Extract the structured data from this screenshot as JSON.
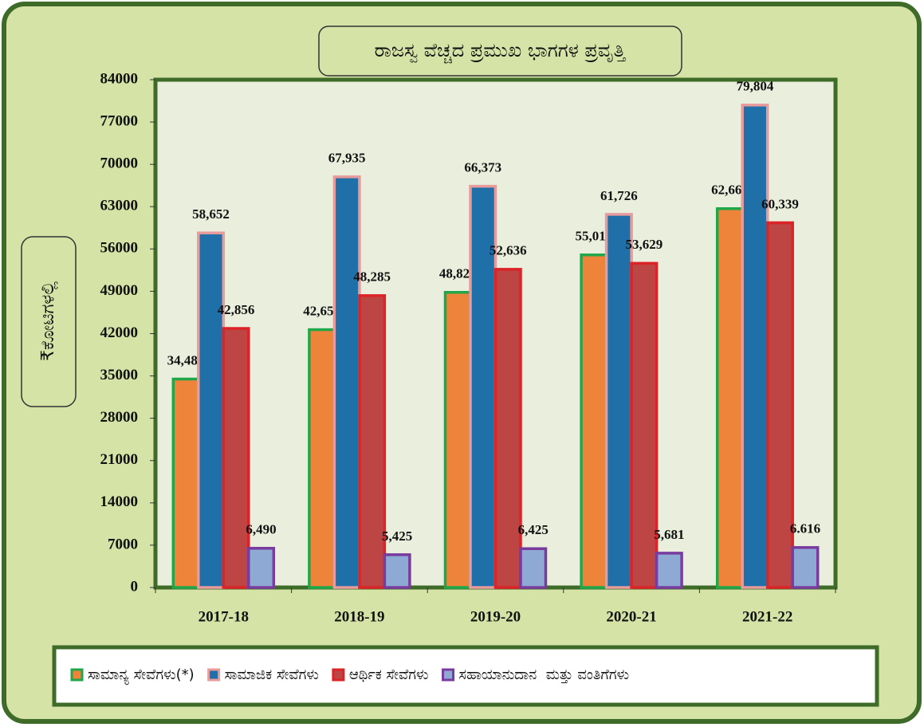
{
  "chart_data": {
    "type": "bar",
    "title": "ರಾಜಸ್ವ ವೆಚ್ಚದ ಪ್ರಮುಖ ಭಾಗಗಳ ಪ್ರವೃತ್ತಿ",
    "y_label": "₹ಕೋಟಿಗಳಲ್ಲಿ",
    "categories": [
      "2017-18",
      "2018-19",
      "2019-20",
      "2020-21",
      "2021-22"
    ],
    "series": [
      {
        "name": "ಸಾಮಾನ್ಯ ಸೇವೆಗಳು(*)",
        "color": "#ed843a",
        "edge": "#1fa74a",
        "values": [
          34484,
          42655,
          48824,
          55018,
          62669
        ],
        "value_labels": [
          "34,484",
          "42,655",
          "48,824",
          "55,018",
          "62,669"
        ]
      },
      {
        "name": "ಸಾಮಾಜಿಕ ಸೇವೆಗಳು",
        "color": "#1f6fa8",
        "edge": "#e79b9b",
        "values": [
          58652,
          67935,
          66373,
          61726,
          79804
        ],
        "value_labels": [
          "58,652",
          "67,935",
          "66,373",
          "61,726",
          "79,804"
        ]
      },
      {
        "name": "ಆರ್ಥಿಕ ಸೇವೆಗಳು",
        "color": "#bd4543",
        "edge": "#dc2327",
        "values": [
          42856,
          48285,
          52636,
          53629,
          60339
        ],
        "value_labels": [
          "42,856",
          "48,285",
          "52,636",
          "53,629",
          "60,339"
        ]
      },
      {
        "name": "ಸಹಾಯಾನುದಾನ  ಮತ್ತು ವಂತಿಗೆಗಳು",
        "color": "#8ea9d3",
        "edge": "#7a3b9e",
        "values": [
          6490,
          5425,
          6425,
          5681,
          6616
        ],
        "value_labels": [
          "6,490",
          "5,425",
          "6,425",
          "5,681",
          "6.616"
        ]
      }
    ],
    "ylim": [
      0,
      84000
    ],
    "yticks": [
      0,
      7000,
      14000,
      21000,
      28000,
      35000,
      42000,
      49000,
      56000,
      63000,
      70000,
      77000,
      84000
    ]
  }
}
